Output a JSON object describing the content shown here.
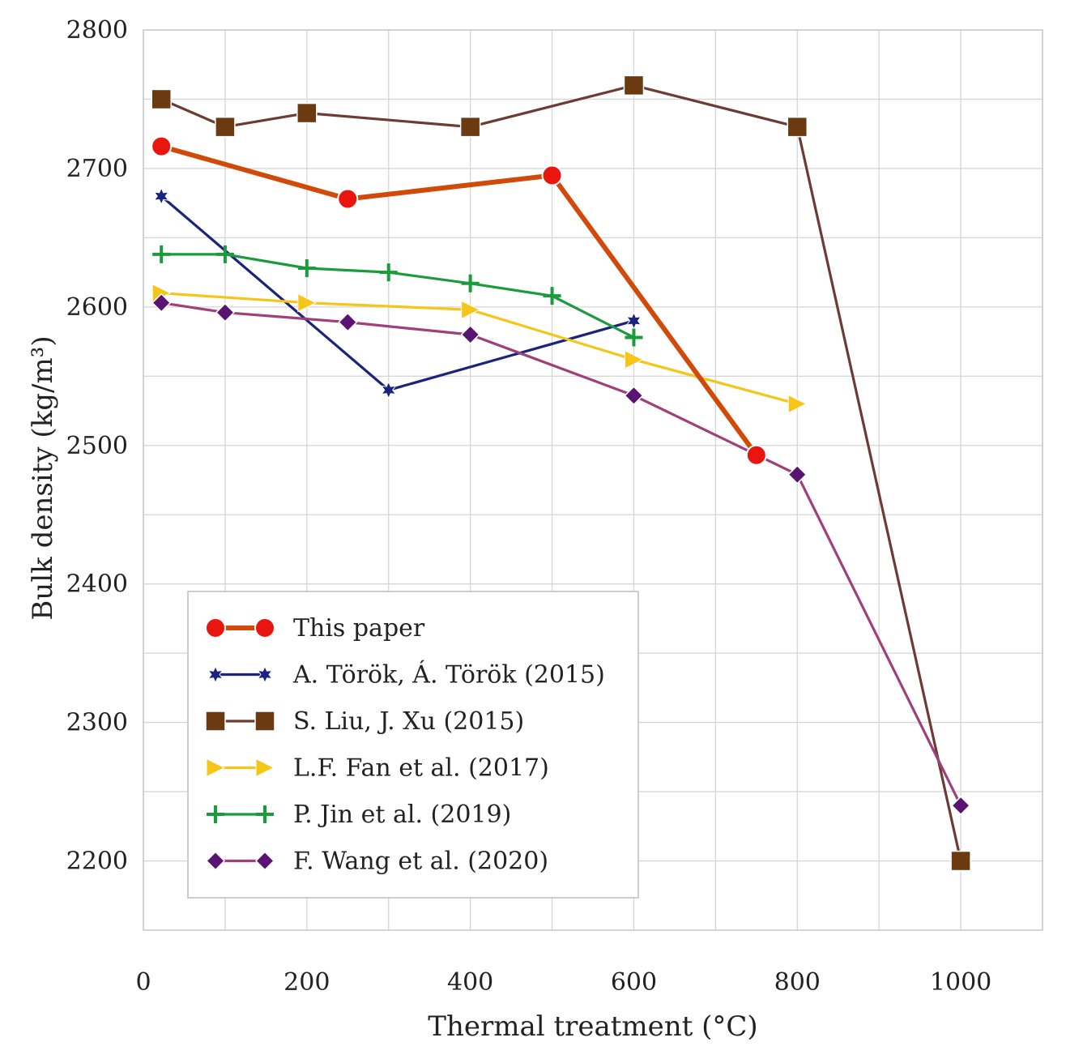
{
  "chart_data": {
    "type": "line",
    "title": "",
    "xlabel": "Thermal treatment (°C)",
    "ylabel": "Bulk density (kg/m³)",
    "xlim": [
      0,
      1100
    ],
    "ylim": [
      2150,
      2800
    ],
    "x_ticks": [
      0,
      200,
      400,
      600,
      800,
      1000
    ],
    "y_ticks": [
      2200,
      2300,
      2400,
      2500,
      2600,
      2700,
      2800
    ],
    "grid": true,
    "legend_position": "bottom-left",
    "series": [
      {
        "name": "This paper",
        "color": "#d24a0a",
        "marker_color": "#e8160e",
        "marker": "circle",
        "x": [
          22,
          250,
          500,
          750
        ],
        "y": [
          2716,
          2678,
          2695,
          2493
        ]
      },
      {
        "name": "A. Török, Á. Török (2015)",
        "color": "#1a237e",
        "marker_color": "#1a237e",
        "marker": "star",
        "x": [
          22,
          300,
          600
        ],
        "y": [
          2680,
          2540,
          2590
        ]
      },
      {
        "name": "S. Liu, J. Xu (2015)",
        "color": "#6d3b32",
        "marker_color": "#6b3a10",
        "marker": "square",
        "x": [
          22,
          100,
          200,
          400,
          600,
          800,
          1000
        ],
        "y": [
          2750,
          2730,
          2740,
          2730,
          2760,
          2730,
          2200
        ]
      },
      {
        "name": "L.F. Fan et al. (2017)",
        "color": "#f5c518",
        "marker_color": "#f5c518",
        "marker": "triangle-right",
        "x": [
          22,
          200,
          400,
          600,
          800
        ],
        "y": [
          2610,
          2603,
          2598,
          2562,
          2530
        ]
      },
      {
        "name": "P. Jin et al. (2019)",
        "color": "#1a9c3c",
        "marker_color": "#1a9c3c",
        "marker": "plus",
        "x": [
          22,
          100,
          200,
          300,
          400,
          500,
          600
        ],
        "y": [
          2638,
          2638,
          2628,
          2625,
          2617,
          2608,
          2578
        ]
      },
      {
        "name": "F. Wang et al. (2020)",
        "color": "#a0407a",
        "marker_color": "#5a1370",
        "marker": "diamond",
        "x": [
          22,
          100,
          250,
          400,
          600,
          800,
          1000
        ],
        "y": [
          2603,
          2596,
          2589,
          2580,
          2536,
          2479,
          2240
        ]
      }
    ]
  }
}
